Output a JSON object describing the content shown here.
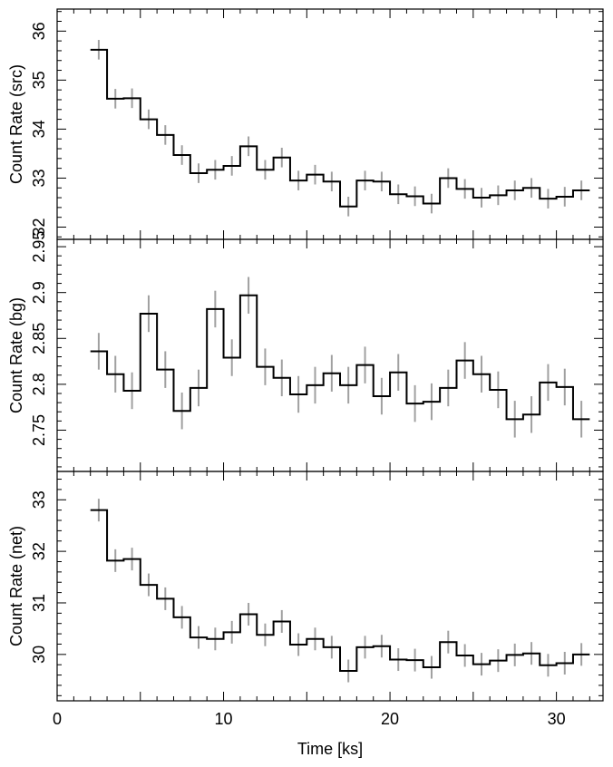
{
  "chart_data": [
    {
      "type": "line",
      "style": "step with vertical error bars",
      "ylabel": "Count Rate (src)",
      "ylim": [
        31.75,
        36.45
      ],
      "yticks": [
        32,
        33,
        34,
        35,
        36
      ],
      "series": [
        {
          "x": [
            2.5,
            3.5,
            4.5,
            5.5,
            6.5,
            7.5,
            8.5,
            9.5,
            10.5,
            11.5,
            12.5,
            13.5,
            14.5,
            15.5,
            16.5,
            17.5,
            18.5,
            19.5,
            20.5,
            21.5,
            22.5,
            23.5,
            24.5,
            25.5,
            26.5,
            27.5,
            28.5,
            29.5,
            30.5,
            31.5
          ],
          "values": [
            35.62,
            34.62,
            34.63,
            34.2,
            33.88,
            33.47,
            33.1,
            33.17,
            33.25,
            33.65,
            33.17,
            33.42,
            32.95,
            33.07,
            32.93,
            32.42,
            32.95,
            32.93,
            32.67,
            32.63,
            32.48,
            33.0,
            32.78,
            32.6,
            32.65,
            32.75,
            32.8,
            32.58,
            32.62,
            32.75
          ],
          "error": 0.2
        }
      ]
    },
    {
      "type": "line",
      "style": "step with vertical error bars",
      "ylabel": "Count Rate (bg)",
      "ylim": [
        2.705,
        2.958
      ],
      "yticks": [
        2.75,
        2.8,
        2.85,
        2.9,
        2.95
      ],
      "series": [
        {
          "x": [
            2.5,
            3.5,
            4.5,
            5.5,
            6.5,
            7.5,
            8.5,
            9.5,
            10.5,
            11.5,
            12.5,
            13.5,
            14.5,
            15.5,
            16.5,
            17.5,
            18.5,
            19.5,
            20.5,
            21.5,
            22.5,
            23.5,
            24.5,
            25.5,
            26.5,
            27.5,
            28.5,
            29.5,
            30.5,
            31.5
          ],
          "values": [
            2.836,
            2.811,
            2.793,
            2.877,
            2.816,
            2.771,
            2.796,
            2.882,
            2.829,
            2.897,
            2.819,
            2.807,
            2.789,
            2.799,
            2.812,
            2.799,
            2.821,
            2.787,
            2.813,
            2.779,
            2.781,
            2.796,
            2.826,
            2.811,
            2.794,
            2.762,
            2.767,
            2.802,
            2.797,
            2.762
          ],
          "error": 0.02
        }
      ]
    },
    {
      "type": "line",
      "style": "step with vertical error bars",
      "ylabel": "Count Rate (net)",
      "ylim": [
        29.1,
        33.55
      ],
      "yticks": [
        30,
        31,
        32,
        33
      ],
      "xlabel": "Time [ks]",
      "xlim": [
        0,
        32.8
      ],
      "xticks": [
        0,
        10,
        20,
        30
      ],
      "series": [
        {
          "x": [
            2.5,
            3.5,
            4.5,
            5.5,
            6.5,
            7.5,
            8.5,
            9.5,
            10.5,
            11.5,
            12.5,
            13.5,
            14.5,
            15.5,
            16.5,
            17.5,
            18.5,
            19.5,
            20.5,
            21.5,
            22.5,
            23.5,
            24.5,
            25.5,
            26.5,
            27.5,
            28.5,
            29.5,
            30.5,
            31.5
          ],
          "values": [
            32.8,
            31.82,
            31.85,
            31.35,
            31.08,
            30.72,
            30.33,
            30.3,
            30.43,
            30.78,
            30.38,
            30.64,
            30.19,
            30.3,
            30.14,
            29.68,
            30.14,
            30.16,
            29.9,
            29.89,
            29.75,
            30.24,
            29.98,
            29.81,
            29.88,
            29.99,
            30.02,
            29.79,
            29.83,
            30.0
          ],
          "error": 0.22
        }
      ]
    }
  ]
}
